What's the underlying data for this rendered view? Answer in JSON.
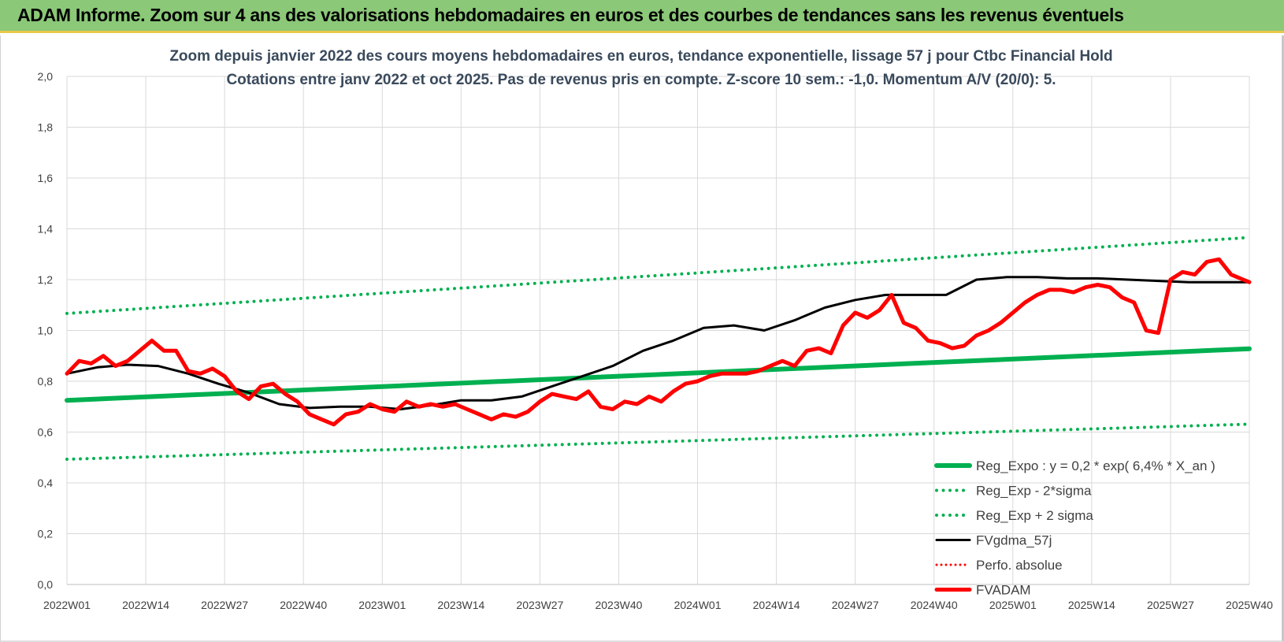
{
  "banner": {
    "title": "ADAM Informe. Zoom sur 4 ans des valorisations hebdomadaires en euros et des courbes de tendances sans les revenus éventuels"
  },
  "colors": {
    "banner_bg": "#8bc878",
    "regexpo": "#00b050",
    "dotted_bands": "#00b050",
    "gdma": "#000000",
    "perfo": "#ff0000",
    "fvadam": "#ff0000",
    "grid": "#d9d9d9"
  },
  "chart_data": {
    "type": "line",
    "title": "Zoom depuis janvier 2022 des cours moyens hebdomadaires en euros, tendance exponentielle, lissage 57 j pour Ctbc Financial Hold",
    "subtitle": "Cotations entre janv 2022 et oct 2025. Pas de revenus pris en compte. Z-score 10 sem.: -1,0.  Momentum A/V (20/0): 5.",
    "xlabel": "",
    "ylabel": "",
    "ylim": [
      0,
      2
    ],
    "yticks": [
      "0,0",
      "0,2",
      "0,4",
      "0,6",
      "0,8",
      "1,0",
      "1,2",
      "1,4",
      "1,6",
      "1,8",
      "2,0"
    ],
    "categories": [
      "2022W01",
      "2022W14",
      "2022W27",
      "2022W40",
      "2023W01",
      "2023W14",
      "2023W27",
      "2023W40",
      "2024W01",
      "2024W14",
      "2024W27",
      "2024W40",
      "2025W01",
      "2025W14",
      "2025W27",
      "2025W40"
    ],
    "category_step": 13,
    "x_count": 196,
    "grid": true,
    "legend_position": "right",
    "legend": [
      "Reg_Expo : y = 0,2 * exp( 6,4% * X_an )",
      "Reg_Exp - 2*sigma",
      "Reg_Exp + 2 sigma",
      "FVgdma_57j",
      "Perfo. absolue",
      "FVADAM"
    ],
    "series": [
      {
        "name": "Reg_Expo : y = 0,2 * exp( 6,4% * X_an )",
        "style": "solid-thick",
        "x": [
          0,
          195
        ],
        "values": [
          0.725,
          0.928
        ]
      },
      {
        "name": "Reg_Exp - 2*sigma",
        "style": "dotted",
        "x": [
          0,
          195
        ],
        "values": [
          0.493,
          0.631
        ]
      },
      {
        "name": "Reg_Exp + 2 sigma",
        "style": "dotted",
        "x": [
          0,
          195
        ],
        "values": [
          1.067,
          1.366
        ]
      },
      {
        "name": "FVgdma_57j",
        "style": "solid",
        "x": [
          0,
          5,
          10,
          15,
          20,
          25,
          30,
          35,
          40,
          45,
          50,
          55,
          60,
          65,
          70,
          75,
          80,
          85,
          90,
          95,
          100,
          105,
          110,
          115,
          120,
          125,
          130,
          135,
          140,
          145,
          150,
          155,
          160,
          165,
          170,
          175,
          180,
          185,
          190,
          195
        ],
        "values": [
          0.83,
          0.855,
          0.865,
          0.86,
          0.83,
          0.79,
          0.755,
          0.71,
          0.695,
          0.7,
          0.7,
          0.69,
          0.705,
          0.725,
          0.725,
          0.74,
          0.78,
          0.82,
          0.86,
          0.92,
          0.96,
          1.01,
          1.02,
          1.0,
          1.04,
          1.09,
          1.12,
          1.14,
          1.14,
          1.14,
          1.2,
          1.21,
          1.21,
          1.205,
          1.205,
          1.2,
          1.195,
          1.19,
          1.19,
          1.19
        ]
      },
      {
        "name": "Perfo. absolue",
        "style": "dotted-red",
        "x": [],
        "values": []
      },
      {
        "name": "FVADAM",
        "style": "solid-thick-red",
        "x": [
          0,
          2,
          4,
          6,
          8,
          10,
          12,
          14,
          16,
          18,
          20,
          22,
          24,
          26,
          28,
          30,
          32,
          34,
          36,
          38,
          40,
          42,
          44,
          46,
          48,
          50,
          52,
          54,
          56,
          58,
          60,
          62,
          64,
          66,
          68,
          70,
          72,
          74,
          76,
          78,
          80,
          82,
          84,
          86,
          88,
          90,
          92,
          94,
          96,
          98,
          100,
          102,
          104,
          106,
          108,
          110,
          112,
          114,
          116,
          118,
          120,
          122,
          124,
          126,
          128,
          130,
          132,
          134,
          136,
          138,
          140,
          142,
          144,
          146,
          148,
          150,
          152,
          154,
          156,
          158,
          160,
          162,
          164,
          166,
          168,
          170,
          172,
          174,
          176,
          178,
          180,
          182,
          184,
          186,
          188,
          190,
          192,
          194,
          195
        ],
        "values": [
          0.83,
          0.88,
          0.87,
          0.9,
          0.86,
          0.88,
          0.92,
          0.96,
          0.92,
          0.92,
          0.84,
          0.83,
          0.85,
          0.82,
          0.76,
          0.73,
          0.78,
          0.79,
          0.75,
          0.72,
          0.67,
          0.65,
          0.63,
          0.67,
          0.68,
          0.71,
          0.69,
          0.68,
          0.72,
          0.7,
          0.71,
          0.7,
          0.71,
          0.69,
          0.67,
          0.65,
          0.67,
          0.66,
          0.68,
          0.72,
          0.75,
          0.74,
          0.73,
          0.76,
          0.7,
          0.69,
          0.72,
          0.71,
          0.74,
          0.72,
          0.76,
          0.79,
          0.8,
          0.82,
          0.83,
          0.83,
          0.83,
          0.84,
          0.86,
          0.88,
          0.86,
          0.92,
          0.93,
          0.91,
          1.02,
          1.07,
          1.05,
          1.08,
          1.14,
          1.03,
          1.01,
          0.96,
          0.95,
          0.93,
          0.94,
          0.98,
          1.0,
          1.03,
          1.07,
          1.11,
          1.14,
          1.16,
          1.16,
          1.15,
          1.17,
          1.18,
          1.17,
          1.13,
          1.11,
          1.0,
          0.99,
          1.2,
          1.23,
          1.22,
          1.27,
          1.28,
          1.22,
          1.2,
          1.19
        ]
      }
    ]
  }
}
